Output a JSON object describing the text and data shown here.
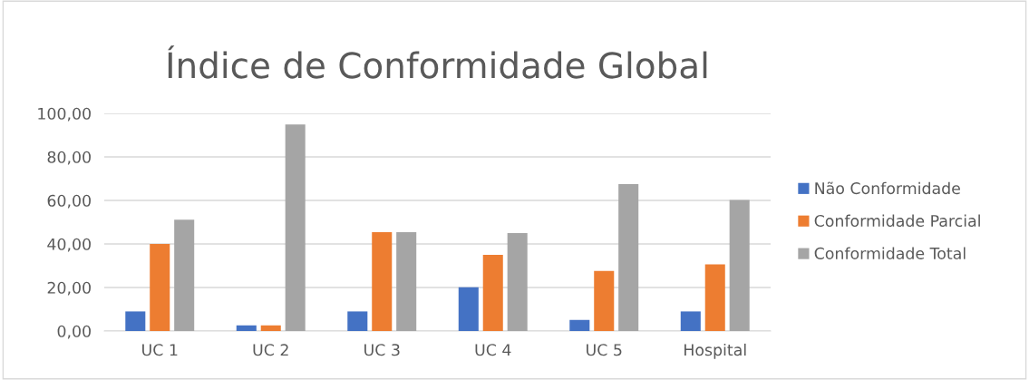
{
  "chart_data": {
    "type": "bar",
    "title": "Índice de Conformidade Global",
    "categories": [
      "UC 1",
      "UC 2",
      "UC 3",
      "UC 4",
      "UC 5",
      "Hospital"
    ],
    "series": [
      {
        "name": "Não Conformidade",
        "color": "#4472c4",
        "values": [
          9.0,
          2.6,
          9.0,
          20.1,
          5.1,
          9.0
        ]
      },
      {
        "name": "Conformidade Parcial",
        "color": "#ed7d31",
        "values": [
          40.0,
          2.6,
          45.4,
          35.0,
          27.6,
          30.6
        ]
      },
      {
        "name": "Conformidade Total",
        "color": "#a5a5a5",
        "values": [
          51.1,
          94.9,
          45.4,
          45.0,
          67.5,
          60.2
        ]
      }
    ],
    "ylim": [
      0,
      100
    ],
    "yticks": [
      {
        "value": 0,
        "label": "0,00"
      },
      {
        "value": 20,
        "label": "20,00"
      },
      {
        "value": 40,
        "label": "40,00"
      },
      {
        "value": 60,
        "label": "60,00"
      },
      {
        "value": 80,
        "label": "80,00"
      },
      {
        "value": 100,
        "label": "100,00"
      }
    ],
    "grid": "y",
    "legend": "right"
  }
}
